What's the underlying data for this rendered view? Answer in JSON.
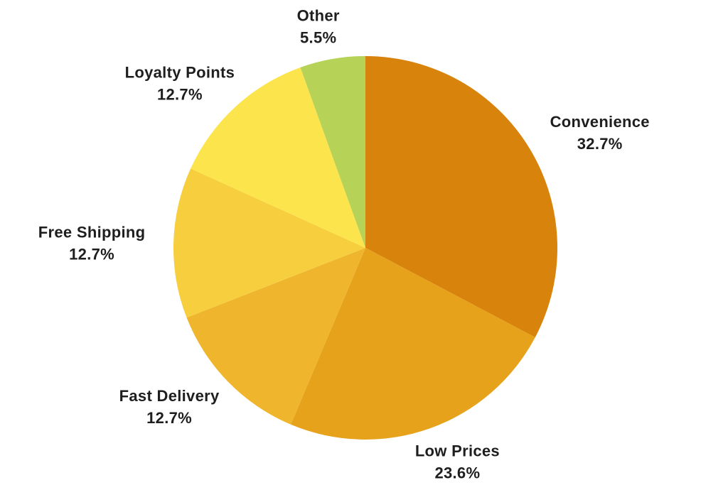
{
  "chart_data": {
    "type": "pie",
    "slices": [
      {
        "label": "Convenience",
        "value": 32.7,
        "percent_label": "32.7%",
        "color": "#D8830B"
      },
      {
        "label": "Low Prices",
        "value": 23.6,
        "percent_label": "23.6%",
        "color": "#E7A21B"
      },
      {
        "label": "Fast Delivery",
        "value": 12.7,
        "percent_label": "12.7%",
        "color": "#EFB52C"
      },
      {
        "label": "Free Shipping",
        "value": 12.7,
        "percent_label": "12.7%",
        "color": "#F6CE3E"
      },
      {
        "label": "Loyalty Points",
        "value": 12.7,
        "percent_label": "12.7%",
        "color": "#FCE44C"
      },
      {
        "label": "Other",
        "value": 5.5,
        "percent_label": "5.5%",
        "color": "#B6D257"
      }
    ],
    "start_angle_deg": 0,
    "direction": "clockwise",
    "label_position": "outside",
    "legend": "none",
    "background": "#FFFFFF",
    "text_color": "#1E1E1E"
  }
}
